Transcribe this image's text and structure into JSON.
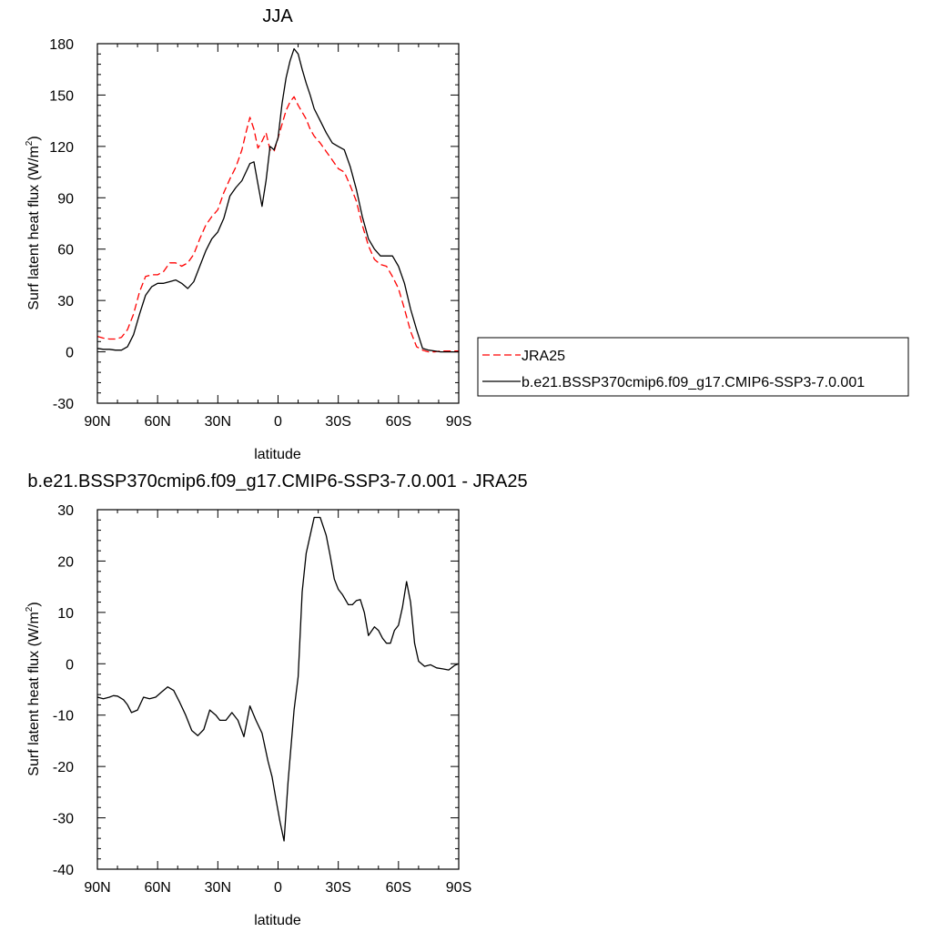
{
  "chart_data": [
    {
      "type": "line",
      "title": "JJA",
      "xlabel": "latitude",
      "ylabel_main": "Surf latent heat flux (W/m",
      "ylabel_sup": "2",
      "ylabel_end": ")",
      "xlim": [
        90,
        -90
      ],
      "ylim": [
        -30,
        180
      ],
      "xticks": [
        90,
        60,
        30,
        0,
        -30,
        -60,
        -90
      ],
      "xticklabels": [
        "90N",
        "60N",
        "30N",
        "0",
        "30S",
        "60S",
        "90S"
      ],
      "yticks": [
        -30,
        0,
        30,
        60,
        90,
        120,
        150,
        180
      ],
      "yticklabels": [
        "-30",
        "0",
        "30",
        "60",
        "90",
        "120",
        "150",
        "180"
      ],
      "legend_position": "right",
      "series": [
        {
          "name": "JRA25",
          "color": "#ff0000",
          "dash": "dashed",
          "x": [
            90,
            87,
            84,
            81,
            78,
            75,
            72,
            69,
            66,
            63,
            60,
            57,
            54,
            51,
            48,
            45,
            42,
            39,
            36,
            33,
            30,
            27,
            24,
            21,
            18,
            16,
            14,
            12,
            10,
            8,
            6,
            4,
            2,
            0,
            -2,
            -4,
            -6,
            -8,
            -10,
            -12,
            -14,
            -16,
            -18,
            -21,
            -24,
            -27,
            -30,
            -33,
            -36,
            -39,
            -42,
            -45,
            -48,
            -51,
            -54,
            -57,
            -60,
            -63,
            -66,
            -69,
            -72,
            -75,
            -78,
            -81,
            -84,
            -87,
            -90
          ],
          "y": [
            9,
            8,
            7.5,
            7.5,
            8.5,
            13,
            22,
            35,
            44,
            45,
            45,
            47,
            52,
            52,
            50,
            52,
            57,
            66,
            74,
            79,
            83,
            93,
            101,
            108,
            118,
            128,
            137,
            130,
            119,
            123,
            128,
            118,
            117,
            125,
            133,
            141,
            146,
            149,
            144,
            140,
            136,
            130,
            126,
            122,
            117,
            112,
            107,
            105,
            97,
            88,
            74,
            62,
            54,
            51,
            50,
            44,
            37,
            25,
            12,
            3,
            1,
            0,
            0,
            0.5,
            0.5,
            0.5,
            0.5
          ]
        },
        {
          "name": "b.e21.BSSP370cmip6.f09_g17.CMIP6-SSP3-7.0.001",
          "color": "#000000",
          "dash": "solid",
          "x": [
            90,
            87,
            84,
            81,
            78,
            75,
            72,
            69,
            66,
            63,
            60,
            57,
            54,
            51,
            48,
            45,
            42,
            39,
            36,
            33,
            30,
            27,
            24,
            21,
            18,
            16,
            14,
            12,
            10,
            8,
            6,
            4,
            2,
            0,
            -2,
            -4,
            -6,
            -8,
            -10,
            -12,
            -14,
            -16,
            -18,
            -21,
            -24,
            -27,
            -30,
            -33,
            -36,
            -39,
            -42,
            -45,
            -48,
            -51,
            -54,
            -57,
            -60,
            -63,
            -66,
            -69,
            -72,
            -75,
            -78,
            -81,
            -84,
            -87,
            -90
          ],
          "y": [
            2,
            1.5,
            1.5,
            1,
            1,
            3,
            10,
            22,
            33,
            38,
            40,
            40,
            41,
            42,
            40,
            37,
            41,
            50,
            59,
            66,
            70,
            78,
            91,
            96,
            100,
            105,
            110,
            111,
            98,
            85,
            100,
            120,
            118,
            125,
            145,
            160,
            170,
            177,
            174,
            165,
            157,
            150,
            142,
            135,
            128,
            122,
            120,
            118,
            108,
            95,
            79,
            66,
            60,
            56,
            56,
            56,
            50,
            40,
            25,
            13,
            2,
            1,
            0.5,
            0,
            0,
            0,
            0
          ]
        }
      ]
    },
    {
      "type": "line",
      "title": "b.e21.BSSP370cmip6.f09_g17.CMIP6-SSP3-7.0.001 - JRA25",
      "xlabel": "latitude",
      "ylabel_main": "Surf latent heat flux (W/m",
      "ylabel_sup": "2",
      "ylabel_end": ")",
      "xlim": [
        90,
        -90
      ],
      "ylim": [
        -40,
        30
      ],
      "xticks": [
        90,
        60,
        30,
        0,
        -30,
        -60,
        -90
      ],
      "xticklabels": [
        "90N",
        "60N",
        "30N",
        "0",
        "30S",
        "60S",
        "90S"
      ],
      "yticks": [
        -40,
        -30,
        -20,
        -10,
        0,
        10,
        20,
        30
      ],
      "yticklabels": [
        "-40",
        "-30",
        "-20",
        "-10",
        "0",
        "10",
        "20",
        "30"
      ],
      "series": [
        {
          "name": "",
          "color": "#000000",
          "dash": "solid",
          "x": [
            90,
            87,
            84,
            82,
            80,
            77,
            75,
            73,
            70,
            67,
            64,
            61,
            58,
            55,
            52,
            49,
            46,
            43,
            40,
            37,
            34,
            31,
            29,
            26,
            23,
            20,
            17,
            14,
            11,
            8,
            5,
            3,
            1,
            -1,
            -3,
            -5,
            -8,
            -10,
            -12,
            -14,
            -16,
            -18,
            -21,
            -24,
            -26,
            -28,
            -30,
            -32,
            -35,
            -37,
            -39,
            -41,
            -43,
            -45,
            -48,
            -50,
            -52,
            -54,
            -56,
            -58,
            -60,
            -62,
            -64,
            -66,
            -68,
            -70,
            -73,
            -76,
            -79,
            -82,
            -85,
            -88,
            -90
          ],
          "y": [
            -6.5,
            -6.8,
            -6.5,
            -6.2,
            -6.3,
            -7,
            -8,
            -9.5,
            -9,
            -6.5,
            -6.8,
            -6.5,
            -5.5,
            -4.5,
            -5.2,
            -7.5,
            -10,
            -13,
            -14,
            -12.8,
            -9,
            -10,
            -11,
            -11,
            -9.5,
            -11,
            -14.2,
            -8.2,
            -11,
            -13.5,
            -19,
            -22,
            -26.5,
            -30.8,
            -34.5,
            -23,
            -9,
            -2.5,
            14,
            21.5,
            25,
            28.5,
            28.5,
            25,
            21,
            16.5,
            14.5,
            13.5,
            11.5,
            11.5,
            12.3,
            12.5,
            10,
            5.5,
            7.2,
            6.5,
            5,
            4,
            4,
            6.5,
            7.5,
            11,
            16,
            12,
            4,
            0.5,
            -0.5,
            -0.2,
            -0.8,
            -1,
            -1.2,
            -0.3,
            0
          ]
        }
      ]
    }
  ]
}
